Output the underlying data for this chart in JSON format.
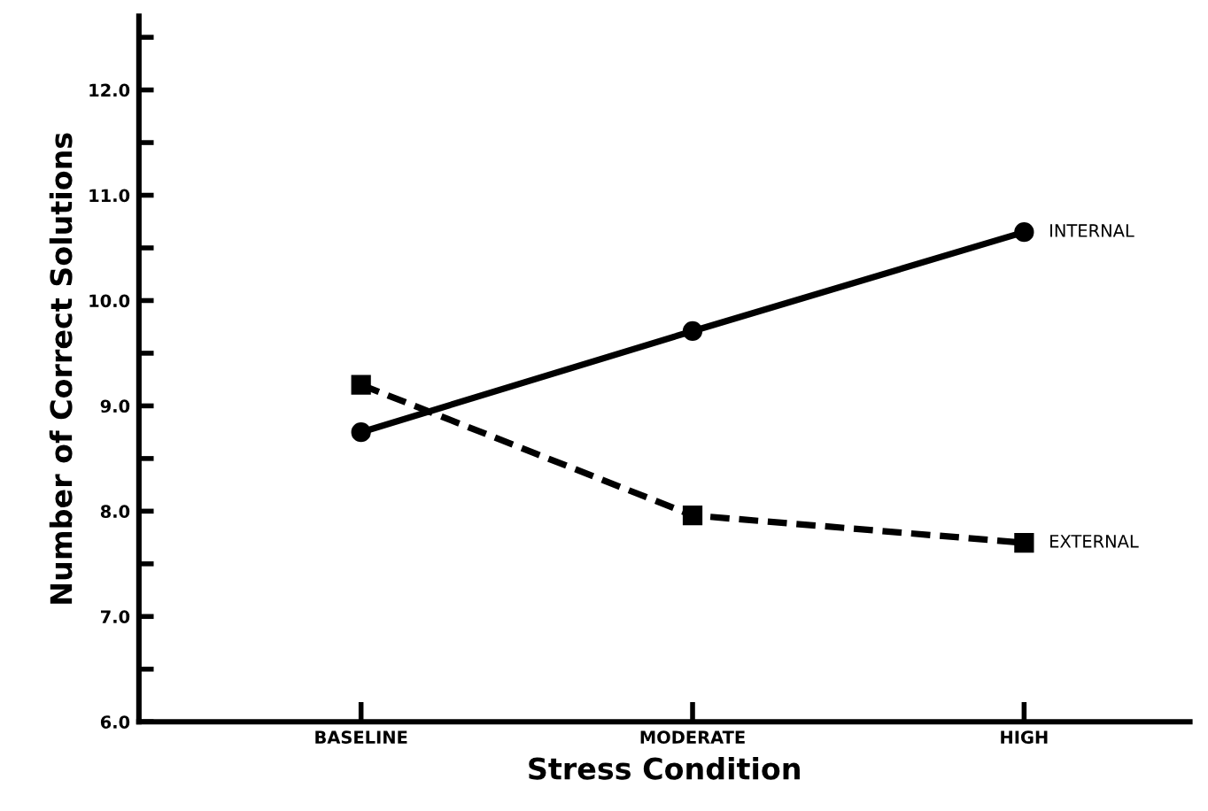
{
  "chart_data": {
    "type": "line",
    "xlabel": "Stress Condition",
    "ylabel": "Number of Correct Solutions",
    "categories": [
      "BASELINE",
      "MODERATE",
      "HIGH"
    ],
    "series": [
      {
        "name": "INTERNAL",
        "color": "#000000",
        "values": [
          8.75,
          9.71,
          10.65
        ],
        "marker": "circle",
        "line_style": "solid"
      },
      {
        "name": "EXTERNAL",
        "color": "#000000",
        "values": [
          9.2,
          7.96,
          7.7
        ],
        "marker": "square",
        "line_style": "dashed"
      }
    ],
    "ylim": [
      6.0,
      12.7
    ],
    "yticks": [
      {
        "value": 6,
        "label": "6.0"
      },
      {
        "value": 6.5,
        "label": null
      },
      {
        "value": 7,
        "label": "7.0"
      },
      {
        "value": 7.5,
        "label": null
      },
      {
        "value": 8,
        "label": "8.0"
      },
      {
        "value": 8.5,
        "label": null
      },
      {
        "value": 9,
        "label": "9.0"
      },
      {
        "value": 9.5,
        "label": null
      },
      {
        "value": 10,
        "label": "10.0"
      },
      {
        "value": 10.5,
        "label": null
      },
      {
        "value": 11,
        "label": "11.0"
      },
      {
        "value": 11.5,
        "label": null
      },
      {
        "value": 12,
        "label": "12.0"
      },
      {
        "value": 12.5,
        "label": null
      }
    ],
    "grid": false,
    "legend": false
  }
}
